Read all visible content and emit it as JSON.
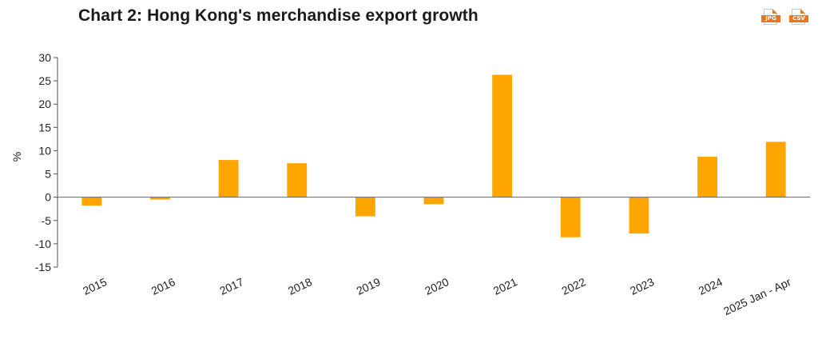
{
  "header": {
    "title": "Chart 2: Hong Kong's merchandise export growth",
    "download_jpg_label": "JPG",
    "download_csv_label": "CSV"
  },
  "chart_data": {
    "type": "bar",
    "title": "Chart 2: Hong Kong's merchandise export growth",
    "xlabel": "",
    "ylabel": "%",
    "categories": [
      "2015",
      "2016",
      "2017",
      "2018",
      "2019",
      "2020",
      "2021",
      "2022",
      "2023",
      "2024",
      "2025 Jan - Apr"
    ],
    "values": [
      -1.8,
      -0.5,
      8.0,
      7.3,
      -4.1,
      -1.5,
      26.3,
      -8.6,
      -7.8,
      8.7,
      11.9
    ],
    "ylim": [
      -15,
      30
    ],
    "yticks": [
      -15,
      -10,
      -5,
      0,
      5,
      10,
      15,
      20,
      25,
      30
    ],
    "bar_color": "#ffa500",
    "grid": false,
    "legend": "none"
  }
}
